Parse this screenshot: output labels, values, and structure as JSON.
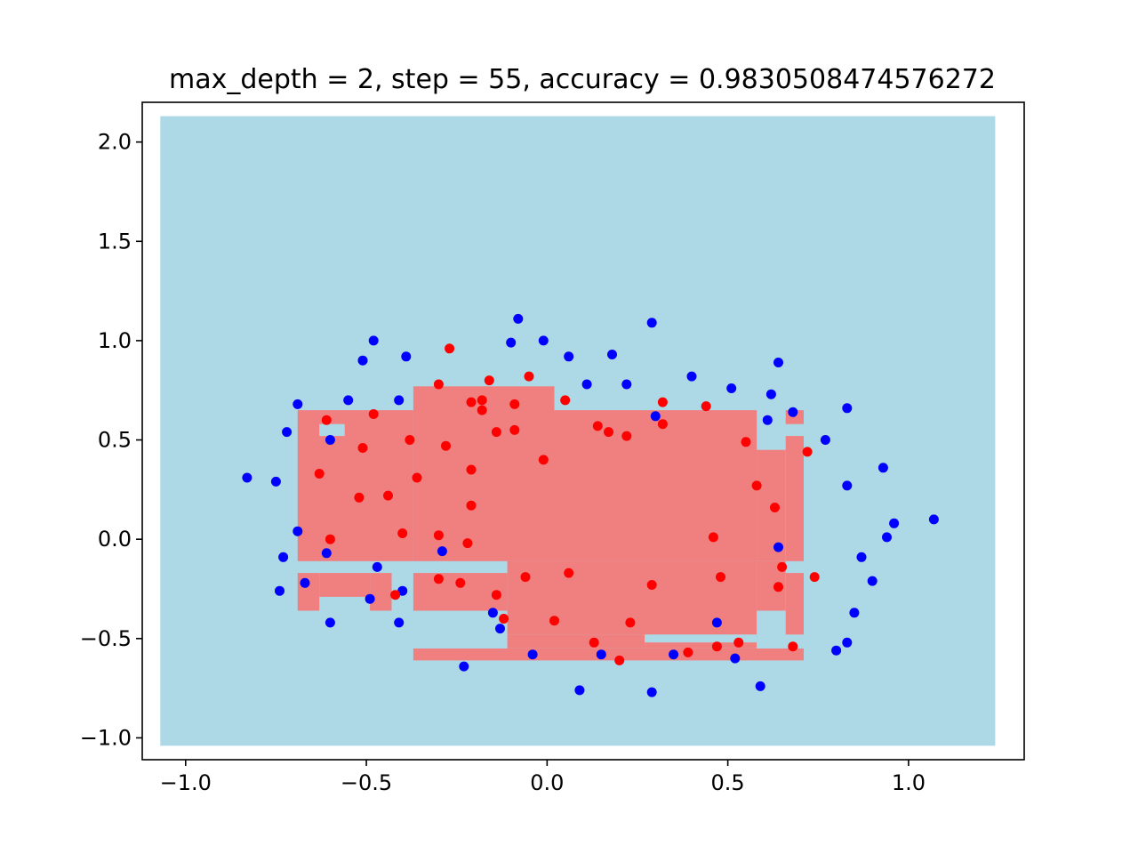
{
  "chart_data": {
    "type": "scatter",
    "title": "max_depth = 2, step = 55, accuracy = 0.9830508474576272",
    "xlabel": "",
    "ylabel": "",
    "xlim": [
      -1.12,
      1.32
    ],
    "ylim": [
      -1.11,
      2.2
    ],
    "x_ticks": [
      -1.0,
      -0.5,
      0.0,
      0.5,
      1.0
    ],
    "x_tick_labels": [
      "−1.0",
      "−0.5",
      "0.0",
      "0.5",
      "1.0"
    ],
    "y_ticks": [
      -1.0,
      -0.5,
      0.0,
      0.5,
      1.0,
      1.5,
      2.0
    ],
    "y_tick_labels": [
      "−1.0",
      "−0.5",
      "0.0",
      "0.5",
      "1.0",
      "1.5",
      "2.0"
    ],
    "grid": false,
    "colors": {
      "region_blue": "#add8e6",
      "region_red": "#f08080",
      "points_blue": "#0000ff",
      "points_red": "#ff0000"
    },
    "decision_regions": {
      "background": {
        "class": "blue",
        "x": [
          -1.07,
          1.24
        ],
        "y": [
          -1.04,
          2.13
        ]
      },
      "red_rects": [
        {
          "x": [
            -0.69,
            -0.37
          ],
          "y": [
            -0.11,
            0.65
          ]
        },
        {
          "x": [
            -0.37,
            0.02
          ],
          "y": [
            -0.11,
            0.77
          ]
        },
        {
          "x": [
            0.02,
            0.58
          ],
          "y": [
            -0.11,
            0.65
          ]
        },
        {
          "x": [
            0.58,
            0.66
          ],
          "y": [
            -0.11,
            0.45
          ]
        },
        {
          "x": [
            0.66,
            0.71
          ],
          "y": [
            -0.11,
            0.52
          ]
        },
        {
          "x": [
            0.66,
            0.71
          ],
          "y": [
            0.58,
            0.65
          ]
        },
        {
          "x": [
            -0.69,
            -0.63
          ],
          "y": [
            -0.36,
            -0.17
          ]
        },
        {
          "x": [
            -0.63,
            -0.49
          ],
          "y": [
            -0.29,
            -0.17
          ]
        },
        {
          "x": [
            -0.49,
            -0.43
          ],
          "y": [
            -0.36,
            -0.17
          ]
        },
        {
          "x": [
            -0.37,
            -0.11
          ],
          "y": [
            -0.36,
            -0.17
          ]
        },
        {
          "x": [
            -0.11,
            0.58
          ],
          "y": [
            -0.48,
            -0.11
          ]
        },
        {
          "x": [
            0.58,
            0.66
          ],
          "y": [
            -0.36,
            -0.11
          ]
        },
        {
          "x": [
            0.66,
            0.71
          ],
          "y": [
            -0.48,
            -0.17
          ]
        },
        {
          "x": [
            -0.37,
            0.71
          ],
          "y": [
            -0.61,
            -0.55
          ]
        },
        {
          "x": [
            -0.11,
            0.27
          ],
          "y": [
            -0.55,
            -0.48
          ]
        },
        {
          "x": [
            0.27,
            0.58
          ],
          "y": [
            -0.55,
            -0.48
          ]
        }
      ],
      "blue_rects": [
        {
          "x": [
            -0.63,
            -0.56
          ],
          "y": [
            0.52,
            0.58
          ]
        },
        {
          "x": [
            0.27,
            0.58
          ],
          "y": [
            -0.52,
            -0.48
          ]
        }
      ]
    },
    "series": [
      {
        "class": "blue",
        "points": [
          [
            -0.83,
            0.31
          ],
          [
            -0.75,
            0.29
          ],
          [
            -0.72,
            0.54
          ],
          [
            -0.69,
            0.68
          ],
          [
            -0.69,
            0.04
          ],
          [
            -0.73,
            -0.09
          ],
          [
            -0.74,
            -0.26
          ],
          [
            -0.67,
            -0.22
          ],
          [
            -0.61,
            -0.07
          ],
          [
            -0.6,
            0.5
          ],
          [
            -0.6,
            -0.42
          ],
          [
            -0.55,
            0.7
          ],
          [
            -0.51,
            0.9
          ],
          [
            -0.48,
            1.0
          ],
          [
            -0.41,
            0.7
          ],
          [
            -0.39,
            0.92
          ],
          [
            -0.47,
            -0.14
          ],
          [
            -0.49,
            -0.3
          ],
          [
            -0.4,
            -0.26
          ],
          [
            -0.41,
            -0.42
          ],
          [
            -0.29,
            -0.06
          ],
          [
            -0.23,
            -0.64
          ],
          [
            -0.15,
            -0.37
          ],
          [
            -0.13,
            -0.45
          ],
          [
            -0.1,
            0.99
          ],
          [
            -0.08,
            1.11
          ],
          [
            -0.04,
            -0.58
          ],
          [
            -0.01,
            1.0
          ],
          [
            0.06,
            0.92
          ],
          [
            0.09,
            -0.76
          ],
          [
            0.11,
            0.78
          ],
          [
            0.15,
            -0.58
          ],
          [
            0.18,
            0.93
          ],
          [
            0.22,
            0.78
          ],
          [
            0.29,
            1.09
          ],
          [
            0.29,
            -0.77
          ],
          [
            0.3,
            0.62
          ],
          [
            0.35,
            -0.58
          ],
          [
            0.4,
            0.82
          ],
          [
            0.47,
            -0.42
          ],
          [
            0.51,
            0.76
          ],
          [
            0.52,
            -0.6
          ],
          [
            0.59,
            -0.74
          ],
          [
            0.61,
            0.6
          ],
          [
            0.62,
            0.73
          ],
          [
            0.64,
            0.89
          ],
          [
            0.64,
            -0.04
          ],
          [
            0.68,
            0.64
          ],
          [
            0.77,
            0.5
          ],
          [
            0.8,
            -0.56
          ],
          [
            0.83,
            0.66
          ],
          [
            0.83,
            0.27
          ],
          [
            0.83,
            -0.52
          ],
          [
            0.85,
            -0.37
          ],
          [
            0.87,
            -0.09
          ],
          [
            0.9,
            -0.21
          ],
          [
            0.93,
            0.36
          ],
          [
            0.94,
            0.01
          ],
          [
            0.96,
            0.08
          ],
          [
            1.07,
            0.1
          ]
        ]
      },
      {
        "class": "red",
        "points": [
          [
            -0.63,
            0.33
          ],
          [
            -0.61,
            0.6
          ],
          [
            -0.6,
            0.0
          ],
          [
            -0.52,
            0.21
          ],
          [
            -0.51,
            0.46
          ],
          [
            -0.48,
            0.63
          ],
          [
            -0.44,
            0.22
          ],
          [
            -0.42,
            -0.28
          ],
          [
            -0.4,
            0.03
          ],
          [
            -0.38,
            0.5
          ],
          [
            -0.36,
            0.31
          ],
          [
            -0.3,
            -0.2
          ],
          [
            -0.3,
            0.02
          ],
          [
            -0.3,
            0.78
          ],
          [
            -0.28,
            0.47
          ],
          [
            -0.27,
            0.96
          ],
          [
            -0.24,
            -0.22
          ],
          [
            -0.22,
            -0.02
          ],
          [
            -0.21,
            0.69
          ],
          [
            -0.21,
            0.35
          ],
          [
            -0.21,
            0.17
          ],
          [
            -0.18,
            0.7
          ],
          [
            -0.18,
            0.65
          ],
          [
            -0.16,
            0.8
          ],
          [
            -0.14,
            0.54
          ],
          [
            -0.14,
            -0.28
          ],
          [
            -0.12,
            -0.4
          ],
          [
            -0.09,
            0.55
          ],
          [
            -0.09,
            0.68
          ],
          [
            -0.06,
            -0.19
          ],
          [
            -0.05,
            0.82
          ],
          [
            -0.01,
            0.4
          ],
          [
            0.02,
            -0.41
          ],
          [
            0.05,
            0.7
          ],
          [
            0.06,
            -0.17
          ],
          [
            0.13,
            -0.52
          ],
          [
            0.14,
            0.57
          ],
          [
            0.17,
            0.54
          ],
          [
            0.2,
            -0.61
          ],
          [
            0.22,
            0.52
          ],
          [
            0.23,
            -0.42
          ],
          [
            0.29,
            -0.23
          ],
          [
            0.32,
            0.58
          ],
          [
            0.32,
            0.69
          ],
          [
            0.39,
            -0.57
          ],
          [
            0.44,
            0.67
          ],
          [
            0.46,
            0.01
          ],
          [
            0.47,
            -0.54
          ],
          [
            0.48,
            -0.19
          ],
          [
            0.53,
            -0.52
          ],
          [
            0.55,
            0.49
          ],
          [
            0.58,
            0.27
          ],
          [
            0.63,
            0.16
          ],
          [
            0.64,
            -0.24
          ],
          [
            0.65,
            -0.14
          ],
          [
            0.68,
            -0.54
          ],
          [
            0.72,
            0.44
          ],
          [
            0.74,
            -0.19
          ]
        ]
      }
    ]
  }
}
